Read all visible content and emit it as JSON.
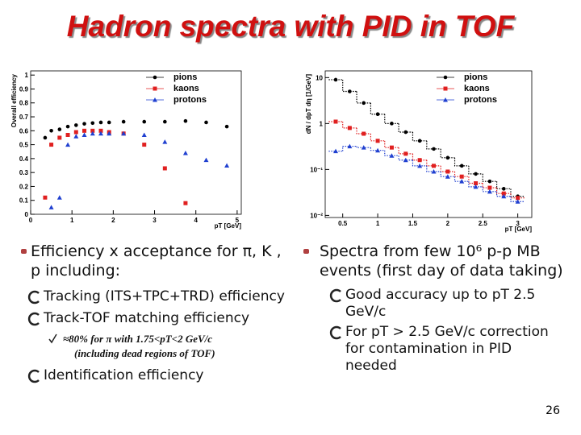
{
  "title": "Hadron spectra with PID in TOF",
  "chart_data": [
    {
      "type": "scatter",
      "y_label": "Overall efficiency",
      "x_label": "pT [GeV]",
      "xlim": [
        0,
        5.1
      ],
      "ylim": [
        0,
        1.03
      ],
      "xticks": [
        0,
        1,
        2,
        3,
        4,
        5
      ],
      "yticks": [
        0,
        0.1,
        0.2,
        0.3,
        0.4,
        0.5,
        0.6,
        0.7,
        0.8,
        0.9,
        1
      ],
      "legend": "upper right",
      "series": [
        {
          "name": "pions",
          "color": "#000000",
          "marker": "circle",
          "x": [
            0.35,
            0.5,
            0.7,
            0.9,
            1.1,
            1.3,
            1.5,
            1.7,
            1.9,
            2.25,
            2.75,
            3.25,
            3.75,
            4.25,
            4.75
          ],
          "values": [
            0.55,
            0.6,
            0.61,
            0.63,
            0.64,
            0.65,
            0.655,
            0.66,
            0.66,
            0.665,
            0.665,
            0.665,
            0.67,
            0.66,
            0.63
          ]
        },
        {
          "name": "kaons",
          "color": "#e02020",
          "marker": "square",
          "x": [
            0.35,
            0.5,
            0.7,
            0.9,
            1.1,
            1.3,
            1.5,
            1.7,
            1.9,
            2.25,
            2.75,
            3.25,
            3.75
          ],
          "values": [
            0.12,
            0.5,
            0.55,
            0.57,
            0.59,
            0.6,
            0.6,
            0.6,
            0.59,
            0.58,
            0.5,
            0.33,
            0.08
          ]
        },
        {
          "name": "protons",
          "color": "#2040d0",
          "marker": "triangle",
          "x": [
            0.5,
            0.7,
            0.9,
            1.1,
            1.3,
            1.5,
            1.7,
            1.9,
            2.25,
            2.75,
            3.25,
            3.75,
            4.25,
            4.75
          ],
          "values": [
            0.05,
            0.12,
            0.5,
            0.56,
            0.57,
            0.58,
            0.58,
            0.58,
            0.58,
            0.57,
            0.52,
            0.44,
            0.39,
            0.35
          ]
        }
      ]
    },
    {
      "type": "step",
      "y_label": "dN / dpT dη [1/GeV]",
      "x_label": "pT [GeV]",
      "log_y": true,
      "xlim": [
        0.25,
        3.2
      ],
      "ylim": [
        0.009,
        14
      ],
      "xticks": [
        0.5,
        1,
        1.5,
        2,
        2.5,
        3
      ],
      "yticks": [
        {
          "value": 0.01,
          "label": "10⁻²"
        },
        {
          "value": 0.1,
          "label": "10⁻¹"
        },
        1,
        10
      ],
      "legend": "upper right",
      "x": [
        0.4,
        0.6,
        0.8,
        1.0,
        1.2,
        1.4,
        1.6,
        1.8,
        2.0,
        2.2,
        2.4,
        2.6,
        2.8,
        3.0
      ],
      "series": [
        {
          "name": "pions",
          "color": "#000000",
          "marker": "circle",
          "values": [
            9,
            5,
            2.8,
            1.6,
            1.0,
            0.65,
            0.42,
            0.28,
            0.18,
            0.12,
            0.08,
            0.055,
            0.038,
            0.026
          ]
        },
        {
          "name": "kaons",
          "color": "#e02020",
          "marker": "square",
          "values": [
            1.1,
            0.8,
            0.6,
            0.42,
            0.3,
            0.22,
            0.16,
            0.12,
            0.09,
            0.07,
            0.05,
            0.04,
            0.03,
            0.024
          ]
        },
        {
          "name": "protons",
          "color": "#2040d0",
          "marker": "triangle",
          "values": [
            0.25,
            0.32,
            0.3,
            0.26,
            0.2,
            0.16,
            0.12,
            0.09,
            0.07,
            0.055,
            0.042,
            0.033,
            0.026,
            0.02
          ]
        }
      ]
    }
  ],
  "left": {
    "bullet": "Efficiency x acceptance for π, K , p including:",
    "items": [
      "Tracking (ITS+TPC+TRD) efficiency",
      "Track-TOF matching efficiency"
    ],
    "note": [
      "≈80% for π with 1.75<pT<2 GeV/c",
      "(including dead regions of TOF)"
    ],
    "last": "Identification efficiency"
  },
  "right": {
    "bullet": "Spectra from few 10⁶ p-p MB events (first day of data taking)",
    "items": [
      "Good accuracy up to pT 2.5 GeV/c",
      "For pT > 2.5 GeV/c correction for contamination in PID needed"
    ]
  },
  "page_number": "26"
}
